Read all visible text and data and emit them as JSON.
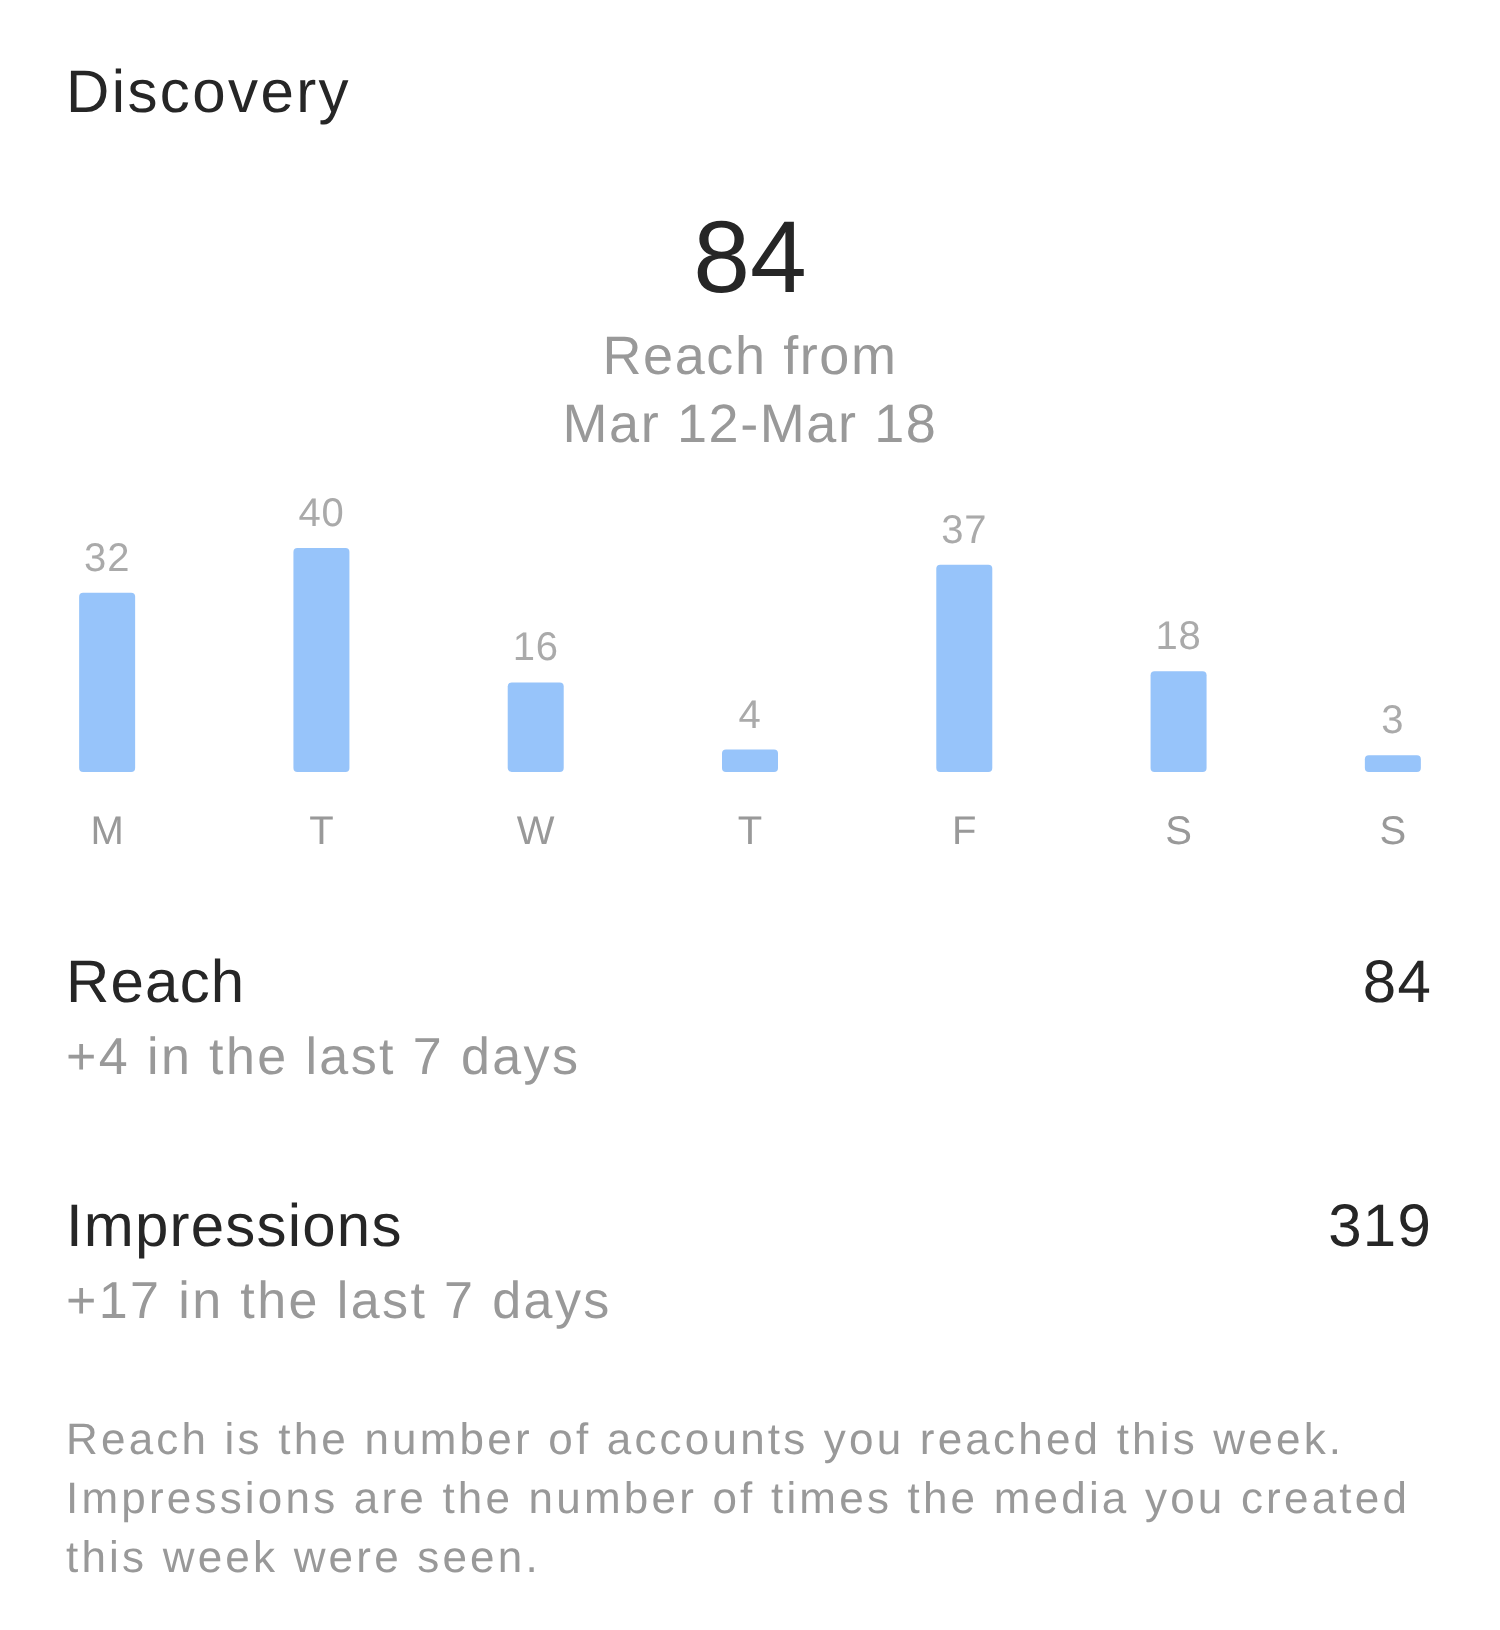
{
  "chart_data": [
    {
      "type": "bar",
      "title": "Discovery",
      "annotations": [
        "84",
        "Reach from",
        "Mar 12-Mar 18"
      ],
      "categories": [
        "M",
        "T",
        "W",
        "T",
        "F",
        "S",
        "S"
      ],
      "values": [
        32,
        40,
        16,
        4,
        37,
        18,
        3
      ],
      "color": "#97c4fa",
      "data_labels": true,
      "tick_labels": "x"
    },
    {
      "type": "other",
      "annotations": [
        "Reach",
        "84",
        "+4 in the last 7 days",
        "Impressions",
        "319",
        "+17 in the last 7 days",
        "Reach is the number of accounts you reached this week. Impressions are the number of times the media you created this week were seen."
      ]
    }
  ]
}
